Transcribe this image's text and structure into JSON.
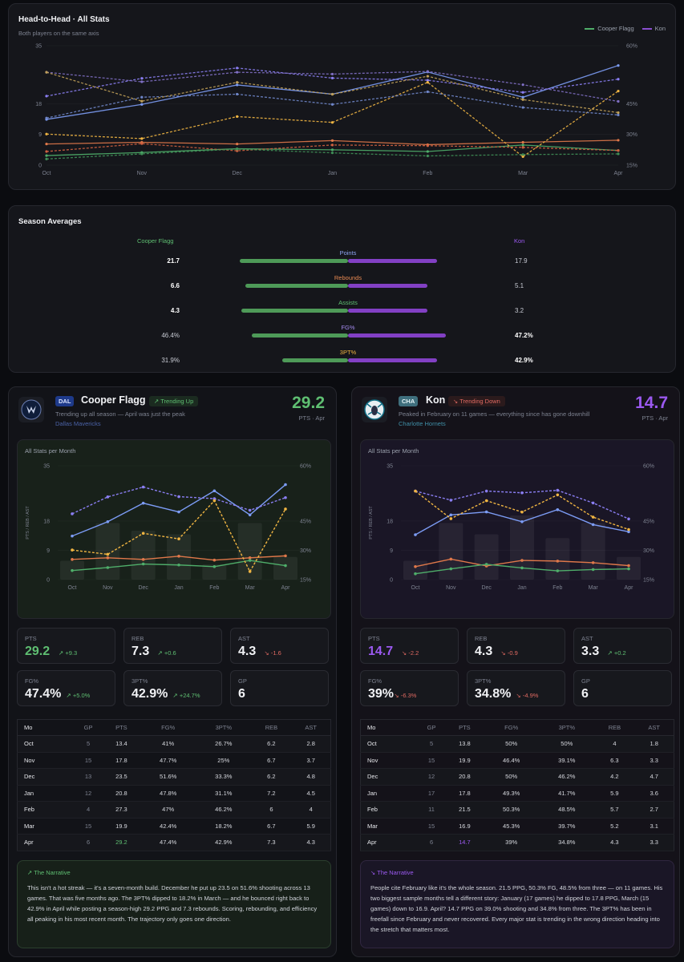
{
  "h2h": {
    "title": "Head-to-Head · All Stats",
    "subtitle": "Both players on the same axis",
    "legend": [
      "Cooper Flagg",
      "Kon"
    ],
    "left_ticks": [
      "35",
      "18",
      "9",
      "0"
    ],
    "right_ticks": [
      "60%",
      "45%",
      "30%",
      "15%"
    ],
    "months": [
      "Oct",
      "Nov",
      "Dec",
      "Jan",
      "Feb",
      "Mar",
      "Apr"
    ]
  },
  "averages": {
    "title": "Season Averages",
    "left_name": "Cooper Flagg",
    "right_name": "Kon",
    "rows": [
      {
        "label": "Points",
        "left": "21.7",
        "right": "17.9",
        "color": "#8ea4f2"
      },
      {
        "label": "Rebounds",
        "left": "6.6",
        "right": "5.1",
        "color": "#e98a52"
      },
      {
        "label": "Assists",
        "left": "4.3",
        "right": "3.2",
        "color": "#5fbf72"
      },
      {
        "label": "FG%",
        "left": "46.4%",
        "right": "47.2%",
        "color": "#a58cf0"
      },
      {
        "label": "3PT%",
        "left": "31.9%",
        "right": "42.9%",
        "color": "#f0b542"
      }
    ]
  },
  "cards": [
    {
      "team": "DAL",
      "name": "Cooper Flagg",
      "trend": "Trending Up",
      "subline": "Trending up all season — April was just the peak",
      "team_name": "Dallas Mavericks",
      "big_pts": "29.2",
      "big_pts_sub": "PTS · Apr",
      "chart_title": "All Stats per Month",
      "stats": [
        {
          "label": "PTS",
          "value": "29.2",
          "delta": "+9.3"
        },
        {
          "label": "REB",
          "value": "7.3",
          "delta": "+0.6"
        },
        {
          "label": "AST",
          "value": "4.3",
          "delta": "-1.6"
        },
        {
          "label": "FG%",
          "value": "47.4%",
          "delta": "+5.0%"
        },
        {
          "label": "3PT%",
          "value": "42.9%",
          "delta": "+24.7%"
        },
        {
          "label": "GP",
          "value": "6",
          "delta": ""
        }
      ],
      "table_headers": [
        "Mo",
        "GP",
        "PTS",
        "FG%",
        "3PT%",
        "REB",
        "AST"
      ],
      "table_rows": [
        [
          "Oct",
          "5",
          "13.4",
          "41%",
          "26.7%",
          "6.2",
          "2.8"
        ],
        [
          "Nov",
          "15",
          "17.8",
          "47.7%",
          "25%",
          "6.7",
          "3.7"
        ],
        [
          "Dec",
          "13",
          "23.5",
          "51.6%",
          "33.3%",
          "6.2",
          "4.8"
        ],
        [
          "Jan",
          "12",
          "20.8",
          "47.8%",
          "31.1%",
          "7.2",
          "4.5"
        ],
        [
          "Feb",
          "4",
          "27.3",
          "47%",
          "46.2%",
          "6",
          "4"
        ],
        [
          "Mar",
          "15",
          "19.9",
          "42.4%",
          "18.2%",
          "6.7",
          "5.9"
        ],
        [
          "Apr",
          "6",
          "29.2",
          "47.4%",
          "42.9%",
          "7.3",
          "4.3"
        ]
      ],
      "narrative_title": "The Narrative",
      "narrative": "This isn't a hot streak — it's a seven-month build. December he put up 23.5 on 51.6% shooting across 13 games. That was five months ago. The 3PT% dipped to 18.2% in March — and he bounced right back to 42.9% in April while posting a season-high 29.2 PPG and 7.3 rebounds. Scoring, rebounding, and efficiency all peaking in his most recent month. The trajectory only goes one direction."
    },
    {
      "team": "CHA",
      "name": "Kon",
      "trend": "Trending Down",
      "subline": "Peaked in February on 11 games — everything since has gone downhill",
      "team_name": "Charlotte Hornets",
      "big_pts": "14.7",
      "big_pts_sub": "PTS · Apr",
      "chart_title": "All Stats per Month",
      "stats": [
        {
          "label": "PTS",
          "value": "14.7",
          "delta": "-2.2"
        },
        {
          "label": "REB",
          "value": "4.3",
          "delta": "-0.9"
        },
        {
          "label": "AST",
          "value": "3.3",
          "delta": "+0.2"
        },
        {
          "label": "FG%",
          "value": "39%",
          "delta": "-6.3%"
        },
        {
          "label": "3PT%",
          "value": "34.8%",
          "delta": "-4.9%"
        },
        {
          "label": "GP",
          "value": "6",
          "delta": ""
        }
      ],
      "table_headers": [
        "Mo",
        "GP",
        "PTS",
        "FG%",
        "3PT%",
        "REB",
        "AST"
      ],
      "table_rows": [
        [
          "Oct",
          "5",
          "13.8",
          "50%",
          "50%",
          "4",
          "1.8"
        ],
        [
          "Nov",
          "15",
          "19.9",
          "46.4%",
          "39.1%",
          "6.3",
          "3.3"
        ],
        [
          "Dec",
          "12",
          "20.8",
          "50%",
          "46.2%",
          "4.2",
          "4.7"
        ],
        [
          "Jan",
          "17",
          "17.8",
          "49.3%",
          "41.7%",
          "5.9",
          "3.6"
        ],
        [
          "Feb",
          "11",
          "21.5",
          "50.3%",
          "48.5%",
          "5.7",
          "2.7"
        ],
        [
          "Mar",
          "15",
          "16.9",
          "45.3%",
          "39.7%",
          "5.2",
          "3.1"
        ],
        [
          "Apr",
          "6",
          "14.7",
          "39%",
          "34.8%",
          "4.3",
          "3.3"
        ]
      ],
      "narrative_title": "The Narrative",
      "narrative": "People cite February like it's the whole season. 21.5 PPG, 50.3% FG, 48.5% from three — on 11 games. His two biggest sample months tell a different story: January (17 games) he dipped to 17.8 PPG, March (15 games) down to 16.9. April? 14.7 PPG on 39.0% shooting and 34.8% from three. The 3PT% has been in freefall since February and never recovered. Every major stat is trending in the wrong direction heading into the stretch that matters most."
    }
  ],
  "chart_data": [
    {
      "type": "line",
      "title": "Head-to-Head · All Stats",
      "categories": [
        "Oct",
        "Nov",
        "Dec",
        "Jan",
        "Feb",
        "Mar",
        "Apr"
      ],
      "ylim": [
        0,
        35
      ],
      "y2lim": [
        15,
        60
      ],
      "series": [
        {
          "name": "Cooper Flagg PTS",
          "values": [
            13.4,
            17.8,
            23.5,
            20.8,
            27.3,
            19.9,
            29.2
          ],
          "axis": "left",
          "color": "#7c9cf5",
          "dash": false
        },
        {
          "name": "Cooper Flagg REB",
          "values": [
            6.2,
            6.7,
            6.2,
            7.2,
            6.0,
            6.7,
            7.3
          ],
          "axis": "left",
          "color": "#e0784a",
          "dash": false
        },
        {
          "name": "Cooper Flagg AST",
          "values": [
            2.8,
            3.7,
            4.8,
            4.5,
            4.0,
            5.9,
            4.3
          ],
          "axis": "left",
          "color": "#4fae6a",
          "dash": false
        },
        {
          "name": "Cooper Flagg FG%",
          "values": [
            41,
            47.7,
            51.6,
            47.8,
            47,
            42.4,
            47.4
          ],
          "axis": "right",
          "color": "#8a7ef2",
          "dash": true
        },
        {
          "name": "Cooper Flagg 3PT%",
          "values": [
            26.7,
            25,
            33.3,
            31.1,
            46.2,
            18.2,
            42.9
          ],
          "axis": "right",
          "color": "#f0b542",
          "dash": true
        },
        {
          "name": "Kon PTS",
          "values": [
            13.8,
            19.9,
            20.8,
            17.8,
            21.5,
            16.9,
            14.7
          ],
          "axis": "left",
          "color": "#6f86c9",
          "dash": true
        },
        {
          "name": "Kon REB",
          "values": [
            4,
            6.3,
            4.2,
            5.9,
            5.7,
            5.2,
            4.3
          ],
          "axis": "left",
          "color": "#d06040",
          "dash": true
        },
        {
          "name": "Kon AST",
          "values": [
            1.8,
            3.3,
            4.7,
            3.6,
            2.7,
            3.1,
            3.3
          ],
          "axis": "left",
          "color": "#3f8f57",
          "dash": true
        },
        {
          "name": "Kon FG%",
          "values": [
            50,
            46.4,
            50,
            49.3,
            50.3,
            45.3,
            39
          ],
          "axis": "right",
          "color": "#7f6fc4",
          "dash": true
        },
        {
          "name": "Kon 3PT%",
          "values": [
            50,
            39.1,
            46.2,
            41.7,
            48.5,
            39.7,
            34.8
          ],
          "axis": "right",
          "color": "#c0a058",
          "dash": true
        }
      ]
    },
    {
      "type": "bar",
      "title": "Season Averages",
      "categories": [
        "Points",
        "Rebounds",
        "Assists",
        "FG%",
        "3PT%"
      ],
      "series": [
        {
          "name": "Cooper Flagg",
          "values": [
            21.7,
            6.6,
            4.3,
            46.4,
            31.9
          ]
        },
        {
          "name": "Kon",
          "values": [
            17.9,
            5.1,
            3.2,
            47.2,
            42.9
          ]
        }
      ]
    },
    {
      "type": "line",
      "title": "All Stats per Month",
      "player": "Cooper Flagg",
      "categories": [
        "Oct",
        "Nov",
        "Dec",
        "Jan",
        "Feb",
        "Mar",
        "Apr"
      ],
      "ylabel": "PTS / REB / AST",
      "ylim": [
        0,
        35
      ],
      "y2lim": [
        15,
        60
      ],
      "games": [
        5,
        15,
        13,
        12,
        4,
        15,
        6
      ],
      "series": [
        {
          "name": "PTS",
          "values": [
            13.4,
            17.8,
            23.5,
            20.8,
            27.3,
            19.9,
            29.2
          ],
          "axis": "left",
          "color": "#7c9cf5",
          "dash": false
        },
        {
          "name": "REB",
          "values": [
            6.2,
            6.7,
            6.2,
            7.2,
            6.0,
            6.7,
            7.3
          ],
          "axis": "left",
          "color": "#e0784a",
          "dash": false
        },
        {
          "name": "AST",
          "values": [
            2.8,
            3.7,
            4.8,
            4.5,
            4.0,
            5.9,
            4.3
          ],
          "axis": "left",
          "color": "#4fae6a",
          "dash": false
        },
        {
          "name": "FG%",
          "values": [
            41,
            47.7,
            51.6,
            47.8,
            47,
            42.4,
            47.4
          ],
          "axis": "right",
          "color": "#8a7ef2",
          "dash": true
        },
        {
          "name": "3PT%",
          "values": [
            26.7,
            25,
            33.3,
            31.1,
            46.2,
            18.2,
            42.9
          ],
          "axis": "right",
          "color": "#f0b542",
          "dash": true
        }
      ]
    },
    {
      "type": "line",
      "title": "All Stats per Month",
      "player": "Kon",
      "categories": [
        "Oct",
        "Nov",
        "Dec",
        "Jan",
        "Feb",
        "Mar",
        "Apr"
      ],
      "ylabel": "PTS / REB / AST",
      "ylim": [
        0,
        35
      ],
      "y2lim": [
        15,
        60
      ],
      "games": [
        5,
        15,
        12,
        17,
        11,
        15,
        6
      ],
      "series": [
        {
          "name": "PTS",
          "values": [
            13.8,
            19.9,
            20.8,
            17.8,
            21.5,
            16.9,
            14.7
          ],
          "axis": "left",
          "color": "#7c9cf5",
          "dash": false
        },
        {
          "name": "REB",
          "values": [
            4,
            6.3,
            4.2,
            5.9,
            5.7,
            5.2,
            4.3
          ],
          "axis": "left",
          "color": "#e0784a",
          "dash": false
        },
        {
          "name": "AST",
          "values": [
            1.8,
            3.3,
            4.7,
            3.6,
            2.7,
            3.1,
            3.3
          ],
          "axis": "left",
          "color": "#4fae6a",
          "dash": false
        },
        {
          "name": "FG%",
          "values": [
            50,
            46.4,
            50,
            49.3,
            50.3,
            45.3,
            39
          ],
          "axis": "right",
          "color": "#8a7ef2",
          "dash": true
        },
        {
          "name": "3PT%",
          "values": [
            50,
            39.1,
            46.2,
            41.7,
            48.5,
            39.7,
            34.8
          ],
          "axis": "right",
          "color": "#f0b542",
          "dash": true
        }
      ]
    }
  ],
  "colors": {
    "flagg_accent": "#5fbf72",
    "kon_accent": "#9b59f0",
    "up": "#5fbf72",
    "down": "#e06a62"
  }
}
